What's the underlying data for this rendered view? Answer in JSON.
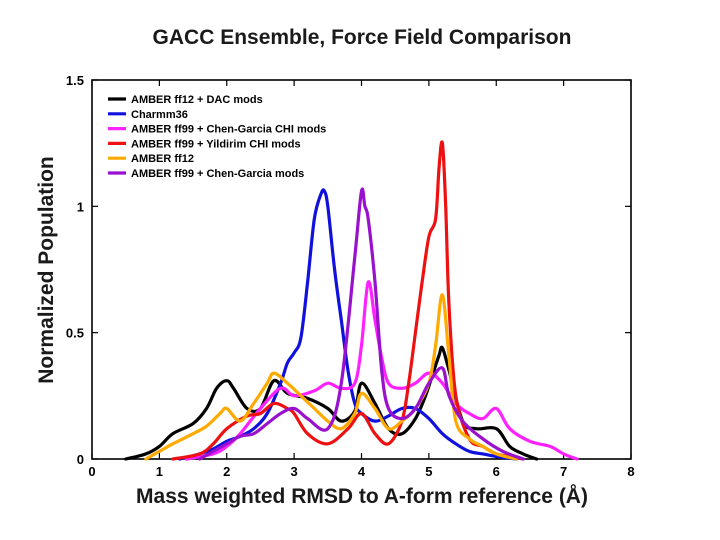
{
  "chart_data": {
    "type": "line",
    "title": "GACC Ensemble, Force Field Comparison",
    "xlabel": "Mass weighted RMSD to A-form reference (Å)",
    "ylabel": "Normalized Population",
    "xlim": [
      0,
      8
    ],
    "ylim": [
      0,
      1.5
    ],
    "x_ticks": [
      0,
      1,
      2,
      3,
      4,
      5,
      6,
      7,
      8
    ],
    "y_ticks": [
      0,
      0.5,
      1,
      1.5
    ],
    "x_tick_labels": [
      "0",
      "1",
      "2",
      "3",
      "4",
      "5",
      "6",
      "7",
      "8"
    ],
    "y_tick_labels": [
      "0",
      "0.5",
      "1",
      "1.5"
    ],
    "legend_position": "top-left",
    "series": [
      {
        "name": "AMBER ff12 + DAC mods",
        "color": "#000000",
        "x": [
          0.5,
          0.8,
          1.0,
          1.2,
          1.5,
          1.7,
          1.85,
          2.0,
          2.1,
          2.3,
          2.5,
          2.7,
          2.9,
          3.2,
          3.5,
          3.7,
          3.9,
          4.0,
          4.2,
          4.4,
          4.6,
          4.8,
          4.95,
          5.05,
          5.15,
          5.2,
          5.3,
          5.5,
          5.7,
          6.0,
          6.2,
          6.4,
          6.6
        ],
        "y": [
          0,
          0.02,
          0.05,
          0.1,
          0.14,
          0.2,
          0.28,
          0.31,
          0.28,
          0.2,
          0.2,
          0.31,
          0.26,
          0.24,
          0.2,
          0.15,
          0.19,
          0.3,
          0.22,
          0.12,
          0.1,
          0.16,
          0.25,
          0.33,
          0.41,
          0.44,
          0.35,
          0.15,
          0.12,
          0.12,
          0.05,
          0.02,
          0
        ]
      },
      {
        "name": "Charmm36",
        "color": "#1111dd",
        "x": [
          1.3,
          1.6,
          1.8,
          2.0,
          2.2,
          2.4,
          2.6,
          2.8,
          2.9,
          3.0,
          3.1,
          3.2,
          3.3,
          3.4,
          3.45,
          3.5,
          3.6,
          3.7,
          3.8,
          3.9,
          4.0,
          4.2,
          4.4,
          4.6,
          4.8,
          5.0,
          5.2,
          5.4,
          5.6,
          5.8,
          6.0,
          6.3
        ],
        "y": [
          0,
          0.02,
          0.04,
          0.07,
          0.09,
          0.12,
          0.18,
          0.3,
          0.38,
          0.42,
          0.48,
          0.7,
          0.95,
          1.05,
          1.06,
          1.0,
          0.75,
          0.55,
          0.35,
          0.22,
          0.18,
          0.15,
          0.17,
          0.2,
          0.2,
          0.16,
          0.1,
          0.06,
          0.03,
          0.02,
          0.01,
          0
        ]
      },
      {
        "name": "AMBER ff99 + Chen-Garcia CHI mods",
        "color": "#ff22ff",
        "x": [
          1.4,
          1.8,
          2.0,
          2.2,
          2.5,
          2.8,
          3.0,
          3.3,
          3.5,
          3.7,
          3.9,
          4.0,
          4.1,
          4.2,
          4.3,
          4.4,
          4.6,
          4.8,
          5.0,
          5.2,
          5.4,
          5.6,
          5.8,
          6.0,
          6.2,
          6.5,
          6.8,
          7.0,
          7.2
        ],
        "y": [
          0,
          0.02,
          0.05,
          0.1,
          0.2,
          0.28,
          0.25,
          0.27,
          0.3,
          0.28,
          0.3,
          0.45,
          0.7,
          0.55,
          0.4,
          0.3,
          0.28,
          0.3,
          0.34,
          0.3,
          0.22,
          0.18,
          0.16,
          0.2,
          0.12,
          0.07,
          0.05,
          0.02,
          0
        ]
      },
      {
        "name": "AMBER ff99 + Yildirim CHI mods",
        "color": "#ee1111",
        "x": [
          1.2,
          1.6,
          1.8,
          2.0,
          2.3,
          2.5,
          2.7,
          2.9,
          3.0,
          3.2,
          3.5,
          3.8,
          4.0,
          4.2,
          4.4,
          4.6,
          4.7,
          4.8,
          4.9,
          5.0,
          5.1,
          5.15,
          5.2,
          5.25,
          5.3,
          5.4,
          5.6,
          5.8,
          6.0,
          6.2,
          6.4
        ],
        "y": [
          0,
          0.02,
          0.06,
          0.12,
          0.17,
          0.18,
          0.22,
          0.2,
          0.18,
          0.1,
          0.06,
          0.12,
          0.18,
          0.1,
          0.06,
          0.15,
          0.3,
          0.5,
          0.7,
          0.88,
          0.95,
          1.15,
          1.25,
          1.0,
          0.6,
          0.25,
          0.08,
          0.05,
          0.02,
          0.01,
          0
        ]
      },
      {
        "name": "AMBER ff12",
        "color": "#ffaa00",
        "x": [
          0.8,
          1.0,
          1.2,
          1.5,
          1.7,
          1.9,
          2.0,
          2.2,
          2.4,
          2.6,
          2.7,
          2.9,
          3.1,
          3.3,
          3.5,
          3.7,
          3.9,
          4.0,
          4.2,
          4.4,
          4.6,
          4.8,
          5.0,
          5.1,
          5.2,
          5.3,
          5.4,
          5.6,
          5.8,
          6.0,
          6.3
        ],
        "y": [
          0,
          0.03,
          0.06,
          0.1,
          0.13,
          0.18,
          0.2,
          0.15,
          0.22,
          0.3,
          0.34,
          0.3,
          0.25,
          0.2,
          0.15,
          0.12,
          0.18,
          0.26,
          0.2,
          0.12,
          0.15,
          0.2,
          0.3,
          0.45,
          0.65,
          0.4,
          0.15,
          0.08,
          0.05,
          0.02,
          0
        ]
      },
      {
        "name": "AMBER ff99 + Chen-Garcia mods",
        "color": "#9911cc",
        "x": [
          1.6,
          1.8,
          2.0,
          2.2,
          2.4,
          2.6,
          2.8,
          3.0,
          3.2,
          3.5,
          3.7,
          3.9,
          4.0,
          4.05,
          4.1,
          4.2,
          4.3,
          4.4,
          4.6,
          4.8,
          5.0,
          5.2,
          5.3,
          5.5,
          5.8,
          6.1,
          6.4
        ],
        "y": [
          0,
          0.03,
          0.06,
          0.09,
          0.1,
          0.14,
          0.18,
          0.2,
          0.16,
          0.12,
          0.3,
          0.8,
          1.06,
          1.0,
          0.95,
          0.7,
          0.35,
          0.2,
          0.16,
          0.2,
          0.3,
          0.36,
          0.25,
          0.15,
          0.08,
          0.03,
          0
        ]
      }
    ]
  }
}
